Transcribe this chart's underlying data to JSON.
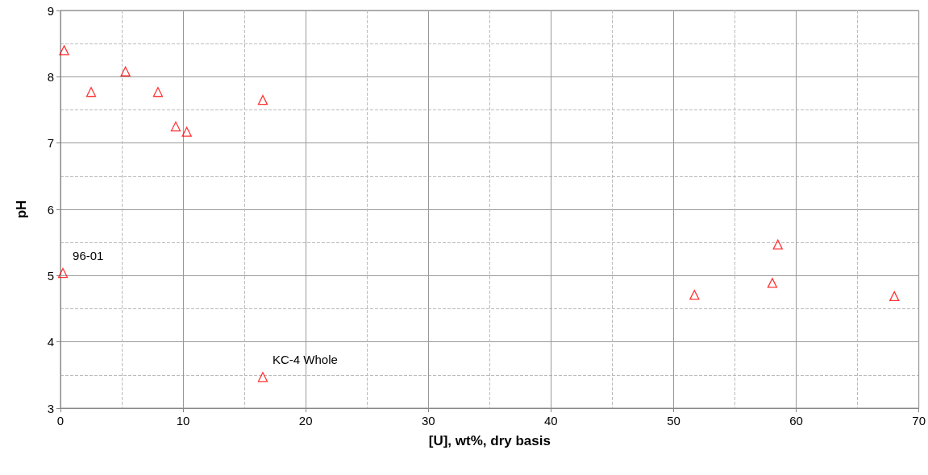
{
  "chart_data": {
    "type": "scatter",
    "xlabel": "[U], wt%, dry basis",
    "ylabel": "pH",
    "x": [
      0.3,
      2.5,
      5.3,
      7.95,
      9.4,
      10.3,
      16.5,
      0.2,
      16.5,
      51.7,
      58.05,
      58.5,
      68.0
    ],
    "series": [
      {
        "color": "#ff0000",
        "values": [
          8.4,
          7.77,
          8.08,
          7.77,
          7.25,
          7.17,
          7.65,
          5.04,
          3.47,
          4.71,
          4.89,
          5.47,
          4.69
        ]
      }
    ],
    "marker": "triangle",
    "grid": true,
    "xlim": [
      0,
      70
    ],
    "xticks": [
      0,
      10,
      20,
      30,
      40,
      50,
      60,
      70
    ],
    "ylim": [
      3,
      9
    ],
    "yticks": [
      3,
      4,
      5,
      6,
      7,
      8,
      9
    ],
    "annotations": [
      {
        "text": "96-01",
        "x": 0.2,
        "y": 5.04
      },
      {
        "text": "KC-4 Whole",
        "x": 16.5,
        "y": 3.47
      }
    ]
  }
}
